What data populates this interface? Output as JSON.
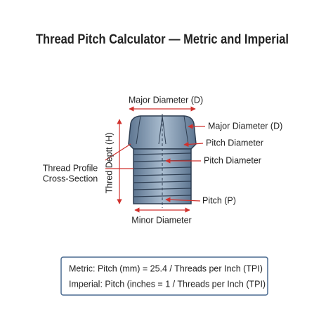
{
  "title": "Thread Pitch Calculator — Metric and Imperial",
  "diagram": {
    "top_dimension": "Major Diameter (D)",
    "bottom_dimension": "Minor Diameter",
    "side_dimension": "Thred Deptt (H)",
    "profile_label": [
      "Thread Profile",
      "Cross-Section"
    ],
    "callouts": [
      "Major Diameter (D)",
      "Pitch Diameter",
      "Pitch Diameter",
      "Pitch (P)"
    ]
  },
  "formulas": [
    "Metric: Pitch (mm) = 25.4 / Threads per Inch (TPI)",
    "Imperial: Pitch (inches = 1 / Threads per Inch (TPI)"
  ]
}
